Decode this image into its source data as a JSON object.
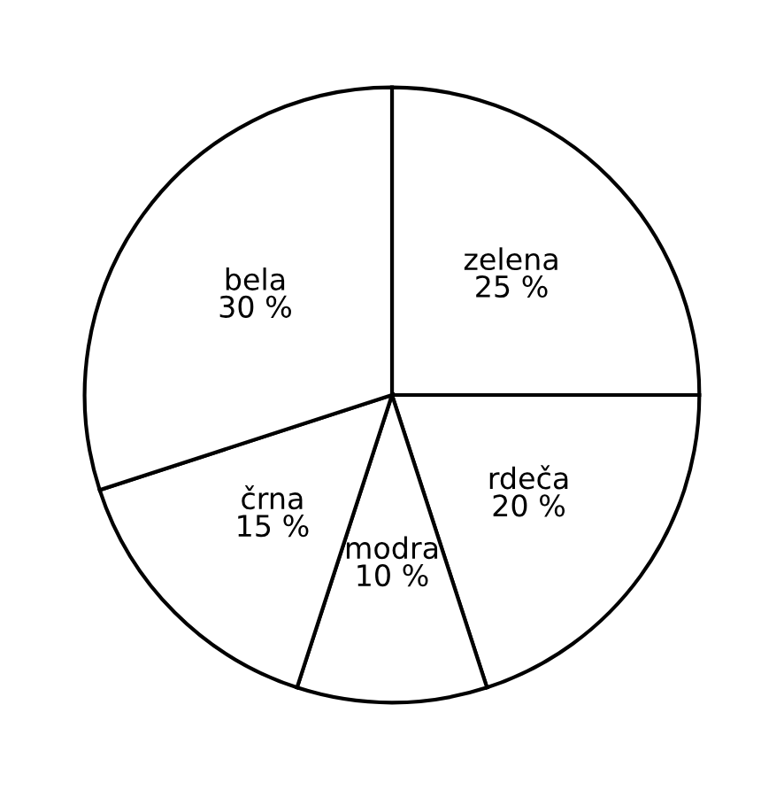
{
  "chart_data": {
    "type": "pie",
    "categories": [
      "zelena",
      "rdeča",
      "modra",
      "črna",
      "bela"
    ],
    "values": [
      25,
      20,
      10,
      15,
      30
    ],
    "value_labels": [
      "25 %",
      "20 %",
      "10 %",
      "15 %",
      "30 %"
    ],
    "colors": [
      "#ffffff",
      "#ffffff",
      "#ffffff",
      "#ffffff",
      "#ffffff"
    ]
  }
}
